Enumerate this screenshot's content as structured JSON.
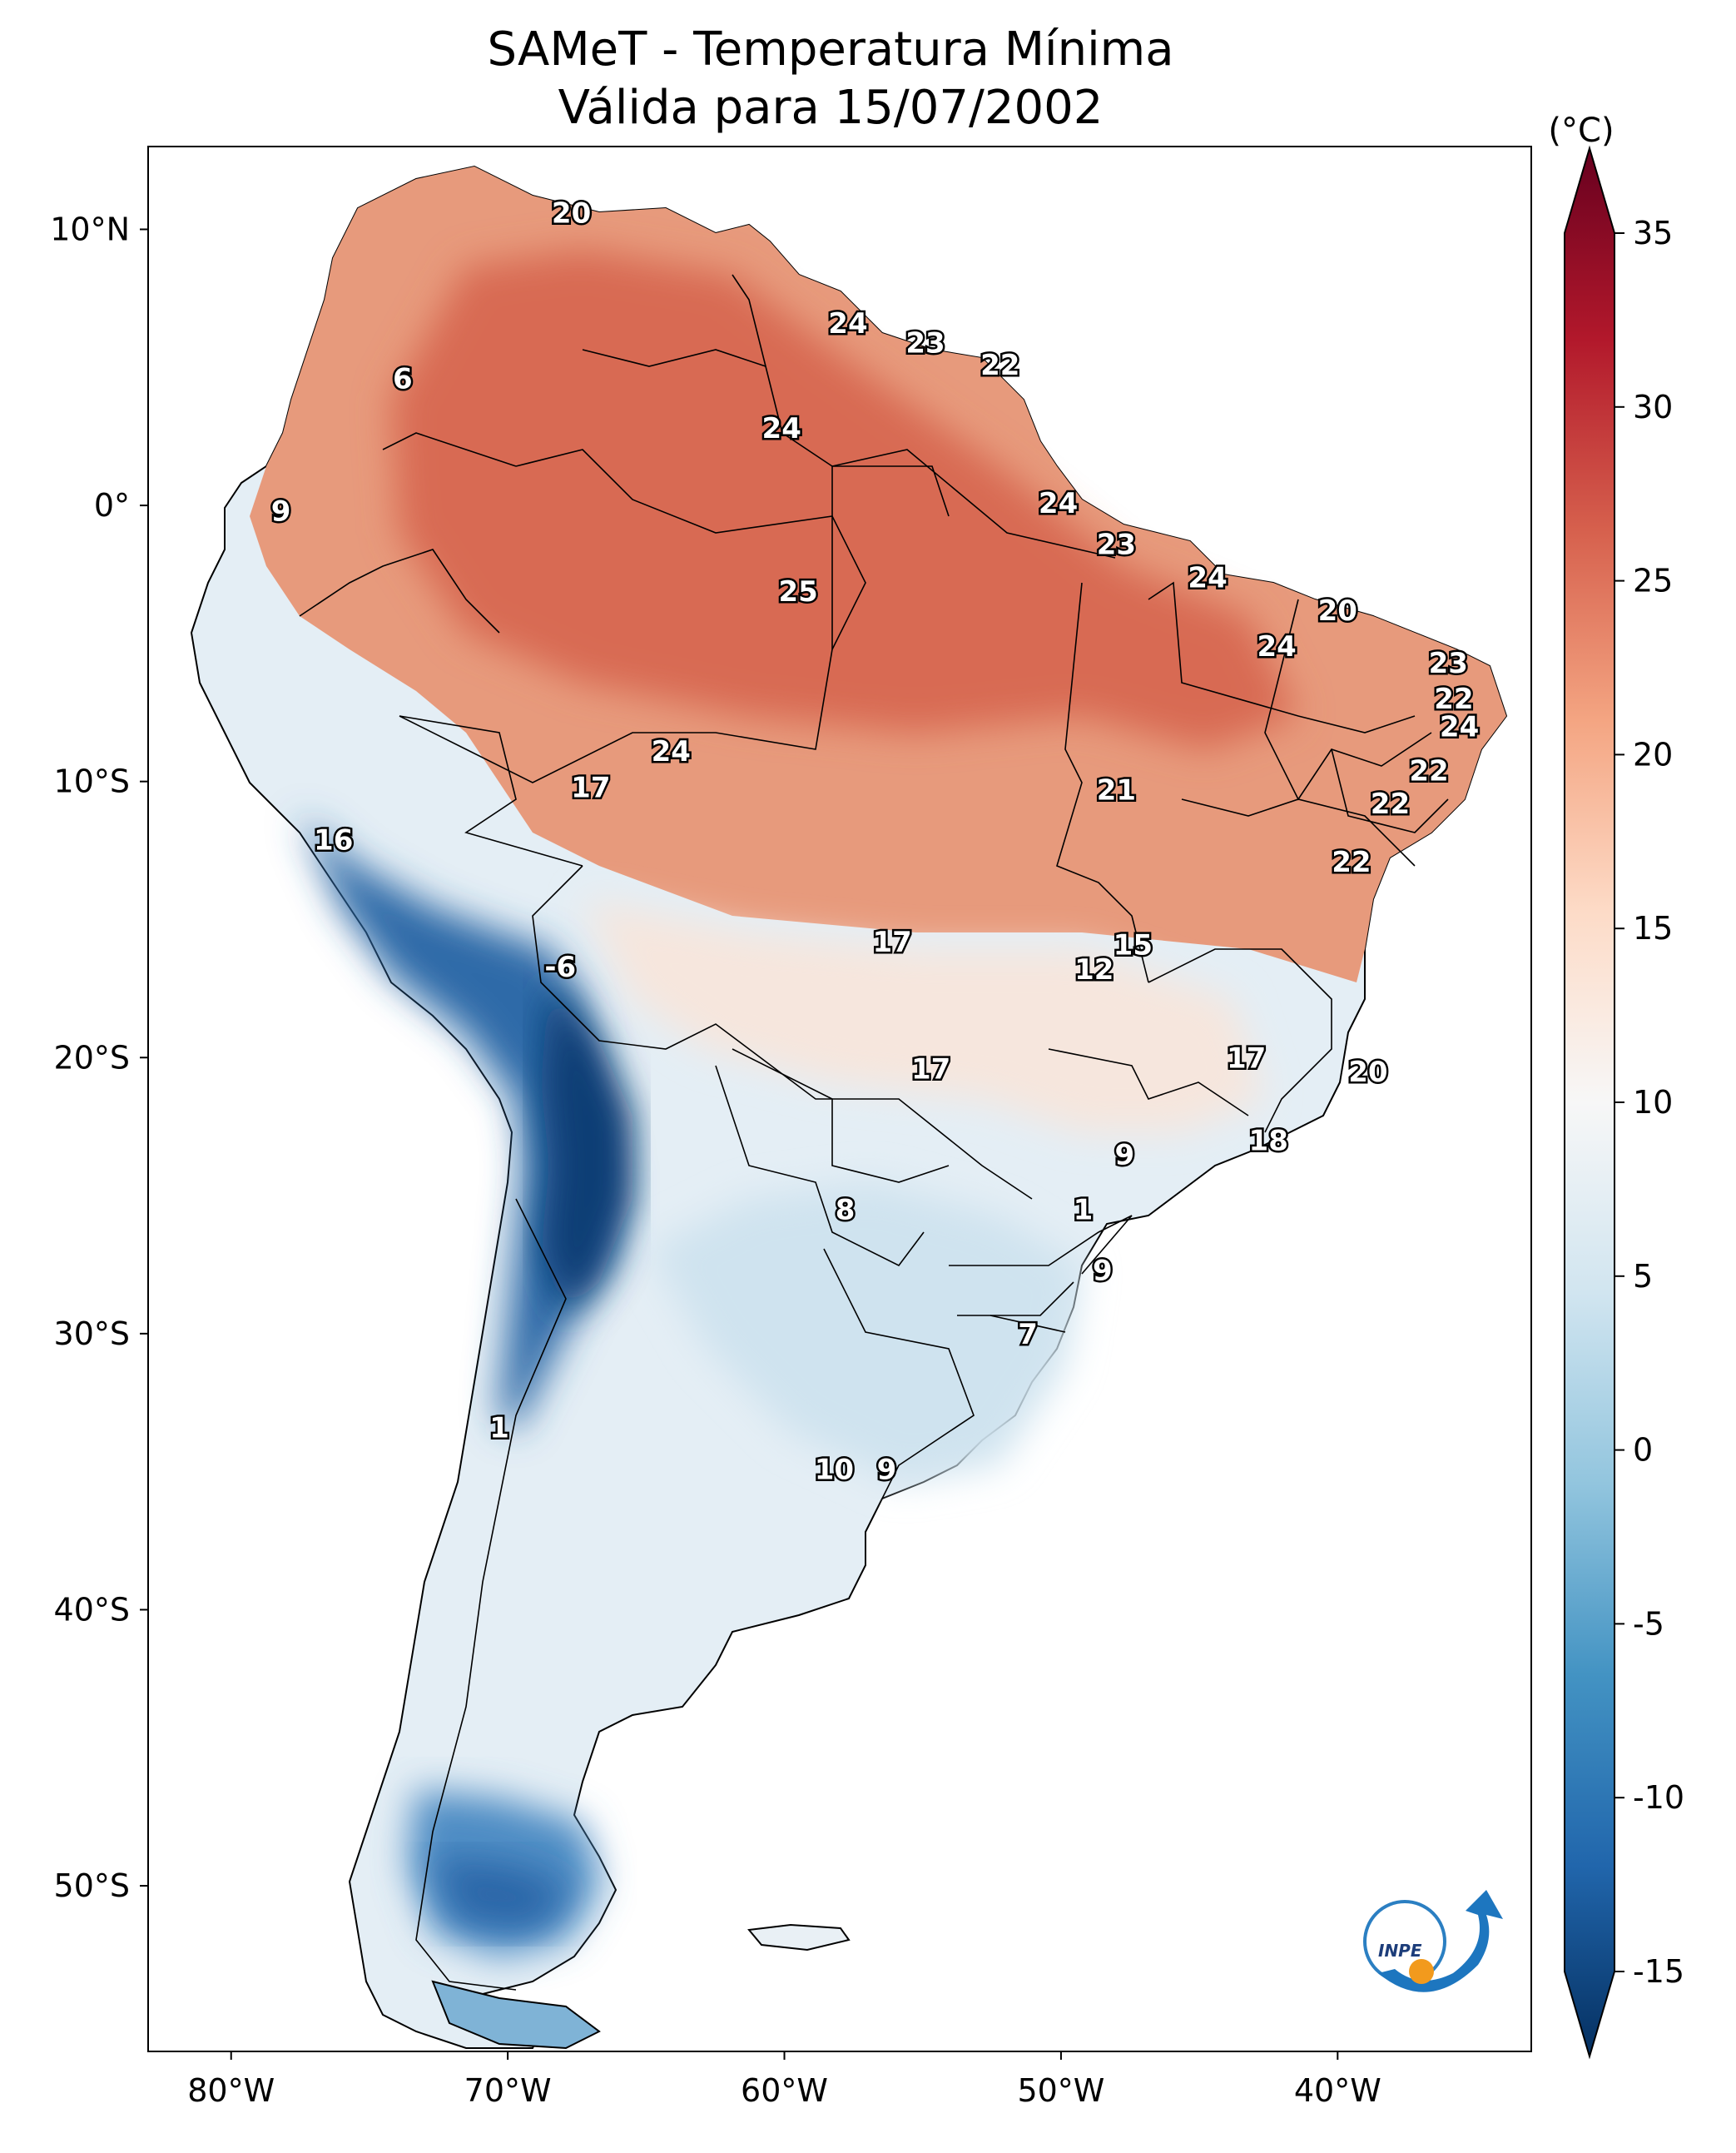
{
  "title": {
    "line1": "SAMeT - Temperatura Mínima",
    "line2": "Válida para 15/07/2002"
  },
  "map": {
    "extent": {
      "lon": [
        -83,
        -33
      ],
      "lat": [
        -56,
        13
      ]
    },
    "lat_ticks": [
      {
        "value": 10,
        "label": "10°N"
      },
      {
        "value": 0,
        "label": "0°"
      },
      {
        "value": -10,
        "label": "10°S"
      },
      {
        "value": -20,
        "label": "20°S"
      },
      {
        "value": -30,
        "label": "30°S"
      },
      {
        "value": -40,
        "label": "40°S"
      },
      {
        "value": -50,
        "label": "50°S"
      }
    ],
    "lon_ticks": [
      {
        "value": -80,
        "label": "80°W"
      },
      {
        "value": -70,
        "label": "70°W"
      },
      {
        "value": -60,
        "label": "60°W"
      },
      {
        "value": -50,
        "label": "50°W"
      },
      {
        "value": -40,
        "label": "40°W"
      }
    ],
    "labels": [
      {
        "lon": -67.7,
        "lat": 10.6,
        "text": "20"
      },
      {
        "lon": -57.7,
        "lat": 6.6,
        "text": "24"
      },
      {
        "lon": -54.9,
        "lat": 5.9,
        "text": "23"
      },
      {
        "lon": -52.2,
        "lat": 5.1,
        "text": "22"
      },
      {
        "lon": -60.1,
        "lat": 2.8,
        "text": "24"
      },
      {
        "lon": -73.8,
        "lat": 4.6,
        "text": "6"
      },
      {
        "lon": -50.1,
        "lat": 0.1,
        "text": "24"
      },
      {
        "lon": -78.2,
        "lat": -0.2,
        "text": "9"
      },
      {
        "lon": -48.0,
        "lat": -1.4,
        "text": "23"
      },
      {
        "lon": -59.5,
        "lat": -3.1,
        "text": "25"
      },
      {
        "lon": -44.7,
        "lat": -2.6,
        "text": "24"
      },
      {
        "lon": -40.0,
        "lat": -3.8,
        "text": "20"
      },
      {
        "lon": -42.2,
        "lat": -5.1,
        "text": "24"
      },
      {
        "lon": -36.0,
        "lat": -5.7,
        "text": "23"
      },
      {
        "lon": -35.8,
        "lat": -7.0,
        "text": "22"
      },
      {
        "lon": -35.6,
        "lat": -8.0,
        "text": "24"
      },
      {
        "lon": -36.7,
        "lat": -9.6,
        "text": "22"
      },
      {
        "lon": -64.1,
        "lat": -8.9,
        "text": "24"
      },
      {
        "lon": -67.0,
        "lat": -10.2,
        "text": "17"
      },
      {
        "lon": -48.0,
        "lat": -10.3,
        "text": "21"
      },
      {
        "lon": -38.1,
        "lat": -10.8,
        "text": "22"
      },
      {
        "lon": -76.3,
        "lat": -12.1,
        "text": "16"
      },
      {
        "lon": -39.5,
        "lat": -12.9,
        "text": "22"
      },
      {
        "lon": -56.1,
        "lat": -15.8,
        "text": "17"
      },
      {
        "lon": -47.4,
        "lat": -15.9,
        "text": "15"
      },
      {
        "lon": -48.8,
        "lat": -16.8,
        "text": "12"
      },
      {
        "lon": -68.1,
        "lat": -16.7,
        "text": "-6"
      },
      {
        "lon": -43.3,
        "lat": -20.0,
        "text": "17"
      },
      {
        "lon": -54.7,
        "lat": -20.4,
        "text": "17"
      },
      {
        "lon": -38.9,
        "lat": -20.5,
        "text": "20"
      },
      {
        "lon": -42.5,
        "lat": -23.0,
        "text": "18"
      },
      {
        "lon": -47.7,
        "lat": -23.5,
        "text": "9"
      },
      {
        "lon": -57.8,
        "lat": -25.5,
        "text": "8"
      },
      {
        "lon": -49.2,
        "lat": -25.5,
        "text": "1"
      },
      {
        "lon": -48.5,
        "lat": -27.7,
        "text": "9"
      },
      {
        "lon": -51.2,
        "lat": -30.0,
        "text": "7"
      },
      {
        "lon": -70.3,
        "lat": -33.4,
        "text": "1"
      },
      {
        "lon": -58.2,
        "lat": -34.9,
        "text": "10"
      },
      {
        "lon": -56.3,
        "lat": -34.9,
        "text": "9"
      }
    ]
  },
  "colorbar": {
    "unit": "(°C)",
    "min": -15,
    "max": 35,
    "ticks": [
      "35",
      "30",
      "25",
      "20",
      "15",
      "10",
      "5",
      "0",
      "-5",
      "-10",
      "-15"
    ],
    "colors": [
      "#053061",
      "#2166ac",
      "#4393c3",
      "#92c5de",
      "#d1e5f0",
      "#f7f7f7",
      "#fddbc7",
      "#f4a582",
      "#d6604d",
      "#b2182b",
      "#67001f"
    ]
  },
  "logo": {
    "text": "INPE"
  }
}
